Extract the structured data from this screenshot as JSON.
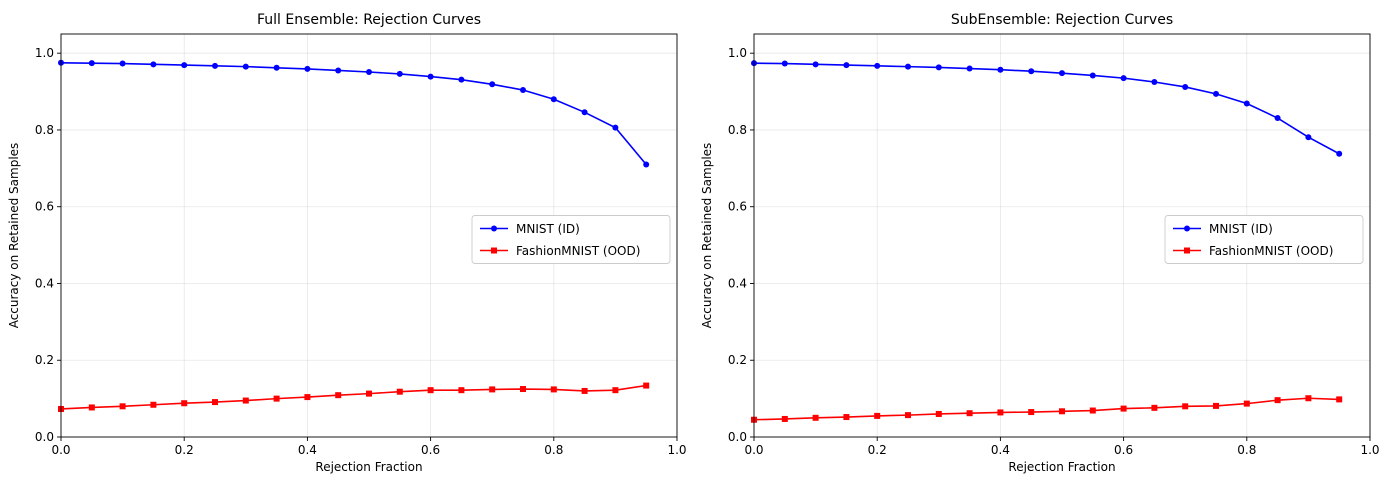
{
  "chart_data": [
    {
      "type": "line",
      "title": "Full Ensemble: Rejection Curves",
      "xlabel": "Rejection Fraction",
      "ylabel": "Accuracy on Retained Samples",
      "xlim": [
        0.0,
        1.0
      ],
      "ylim": [
        0.0,
        1.05
      ],
      "grid": true,
      "legend_position": "center-right",
      "x_ticks": [
        0.0,
        0.2,
        0.4,
        0.6,
        0.8,
        1.0
      ],
      "x_tick_labels": [
        "0.0",
        "0.2",
        "0.4",
        "0.6",
        "0.8",
        "1.0"
      ],
      "y_ticks": [
        0.0,
        0.2,
        0.4,
        0.6,
        0.8,
        1.0
      ],
      "y_tick_labels": [
        "0.0",
        "0.2",
        "0.4",
        "0.6",
        "0.8",
        "1.0"
      ],
      "x": [
        0.0,
        0.05,
        0.1,
        0.15,
        0.2,
        0.25,
        0.3,
        0.35,
        0.4,
        0.45,
        0.5,
        0.55,
        0.6,
        0.65,
        0.7,
        0.75,
        0.8,
        0.85,
        0.9,
        0.95
      ],
      "series": [
        {
          "name": "MNIST (ID)",
          "color": "#0000ff",
          "marker": "circle",
          "values": [
            0.975,
            0.974,
            0.973,
            0.971,
            0.969,
            0.967,
            0.965,
            0.962,
            0.959,
            0.955,
            0.951,
            0.946,
            0.939,
            0.931,
            0.919,
            0.904,
            0.88,
            0.846,
            0.806,
            0.71
          ]
        },
        {
          "name": "FashionMNIST (OOD)",
          "color": "#ff0000",
          "marker": "square",
          "values": [
            0.073,
            0.077,
            0.08,
            0.084,
            0.088,
            0.091,
            0.095,
            0.1,
            0.104,
            0.109,
            0.113,
            0.118,
            0.122,
            0.122,
            0.124,
            0.125,
            0.124,
            0.12,
            0.122,
            0.134
          ]
        }
      ]
    },
    {
      "type": "line",
      "title": "SubEnsemble: Rejection Curves",
      "xlabel": "Rejection Fraction",
      "ylabel": "Accuracy on Retained Samples",
      "xlim": [
        0.0,
        1.0
      ],
      "ylim": [
        0.0,
        1.05
      ],
      "grid": true,
      "legend_position": "center-right",
      "x_ticks": [
        0.0,
        0.2,
        0.4,
        0.6,
        0.8,
        1.0
      ],
      "x_tick_labels": [
        "0.0",
        "0.2",
        "0.4",
        "0.6",
        "0.8",
        "1.0"
      ],
      "y_ticks": [
        0.0,
        0.2,
        0.4,
        0.6,
        0.8,
        1.0
      ],
      "y_tick_labels": [
        "0.0",
        "0.2",
        "0.4",
        "0.6",
        "0.8",
        "1.0"
      ],
      "x": [
        0.0,
        0.05,
        0.1,
        0.15,
        0.2,
        0.25,
        0.3,
        0.35,
        0.4,
        0.45,
        0.5,
        0.55,
        0.6,
        0.65,
        0.7,
        0.75,
        0.8,
        0.85,
        0.9,
        0.95
      ],
      "series": [
        {
          "name": "MNIST (ID)",
          "color": "#0000ff",
          "marker": "circle",
          "values": [
            0.974,
            0.973,
            0.971,
            0.969,
            0.967,
            0.965,
            0.963,
            0.96,
            0.957,
            0.953,
            0.948,
            0.942,
            0.935,
            0.925,
            0.912,
            0.894,
            0.869,
            0.831,
            0.781,
            0.738
          ]
        },
        {
          "name": "FashionMNIST (OOD)",
          "color": "#ff0000",
          "marker": "square",
          "values": [
            0.045,
            0.047,
            0.05,
            0.052,
            0.055,
            0.057,
            0.06,
            0.062,
            0.064,
            0.065,
            0.067,
            0.069,
            0.074,
            0.076,
            0.08,
            0.081,
            0.087,
            0.096,
            0.101,
            0.098
          ]
        }
      ]
    }
  ]
}
